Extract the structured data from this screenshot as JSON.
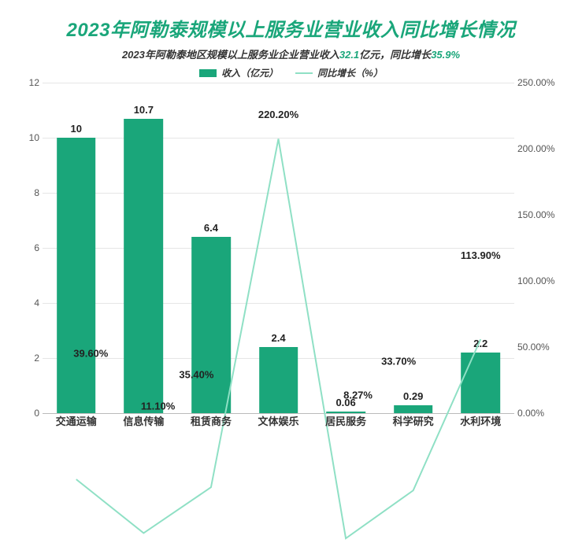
{
  "title": "2023年阿勒泰规模以上服务业营业收入同比增长情况",
  "subtitle_parts": {
    "p1": "2023年阿勒泰地区规模以上服务业企业营业收入",
    "v1": "32.1",
    "p2": "亿元，同比增长",
    "v2": "35.9%"
  },
  "legend": {
    "bar": "收入（亿元）",
    "line": "同比增长（%）"
  },
  "chart": {
    "type": "bar+line",
    "categories": [
      "交通运输",
      "信息传输",
      "租赁商务",
      "文体娱乐",
      "居民服务",
      "科学研究",
      "水利环境"
    ],
    "bar_values": [
      10,
      10.7,
      6.4,
      2.4,
      0.06,
      0.29,
      2.2
    ],
    "bar_labels": [
      "10",
      "10.7",
      "6.4",
      "2.4",
      "0.06",
      "0.29",
      "2.2"
    ],
    "line_values": [
      39.6,
      11.1,
      35.4,
      220.2,
      8.27,
      33.7,
      113.9
    ],
    "line_labels": [
      "39.60%",
      "11.10%",
      "35.40%",
      "220.20%",
      "8.27%",
      "33.70%",
      "113.90%"
    ],
    "y_left": {
      "min": 0,
      "max": 12,
      "step": 2
    },
    "y_right": {
      "min": 0,
      "max": 250,
      "step": 50
    },
    "bar_color": "#1aa67a",
    "line_color": "#8fe0c5",
    "line_width": 2,
    "grid_color": "#e6e6e6",
    "background": "#ffffff",
    "title_fontsize": 24,
    "label_fontsize": 13,
    "line_label_anchor": [
      "tl",
      "bl",
      "br",
      "tc",
      "tl",
      "tr",
      "tc"
    ]
  }
}
